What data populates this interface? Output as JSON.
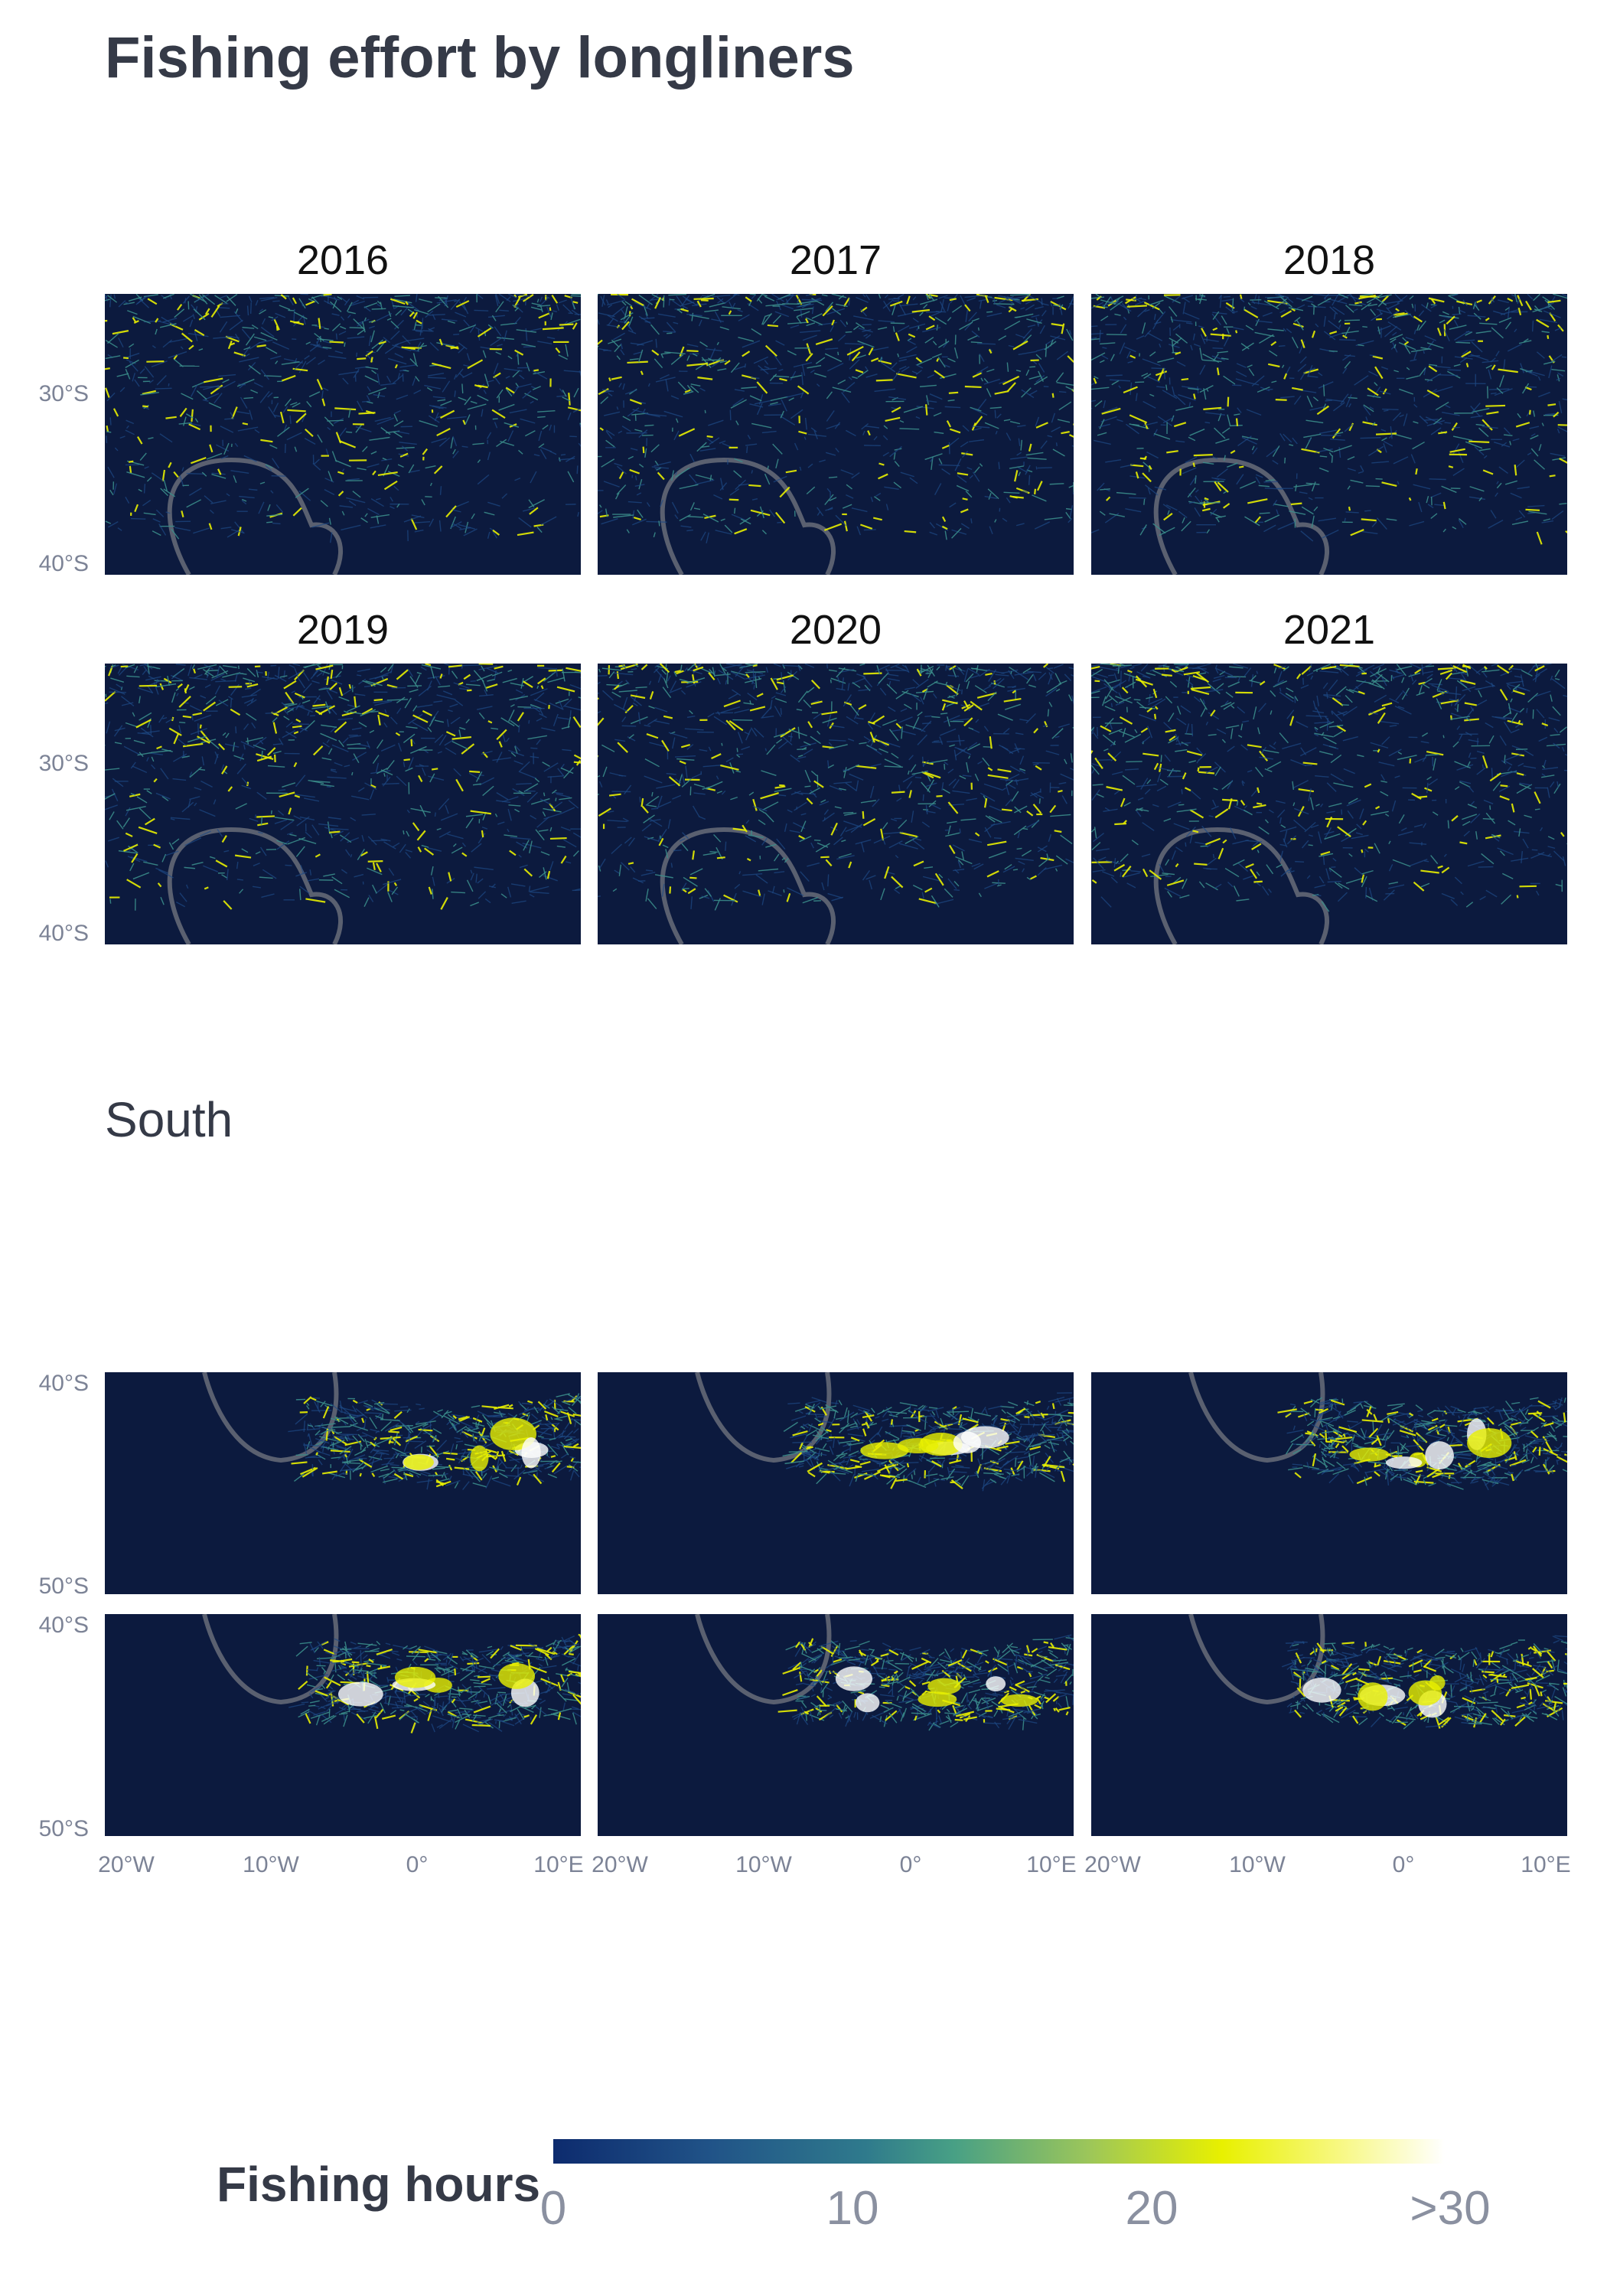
{
  "title": "Fishing effort by longliners",
  "subtitle": "South",
  "years": [
    "2016",
    "2017",
    "2018",
    "2019",
    "2020",
    "2021"
  ],
  "north_lat_labels": [
    "30°S",
    "40°S"
  ],
  "south_lat_labels": [
    "40°S",
    "50°S"
  ],
  "lon_labels": [
    "20°W",
    "10°W",
    "0°",
    "10°E"
  ],
  "legend": {
    "title": "Fishing hours",
    "labels": [
      "0",
      "10",
      "20",
      ">30"
    ]
  },
  "colors": {
    "background": "#0c1a3e",
    "low": "#1e4a86",
    "mid": "#3a8c8a",
    "high": "#e8f000",
    "max": "#ffffff",
    "eez_boundary": "#5a6070"
  }
}
